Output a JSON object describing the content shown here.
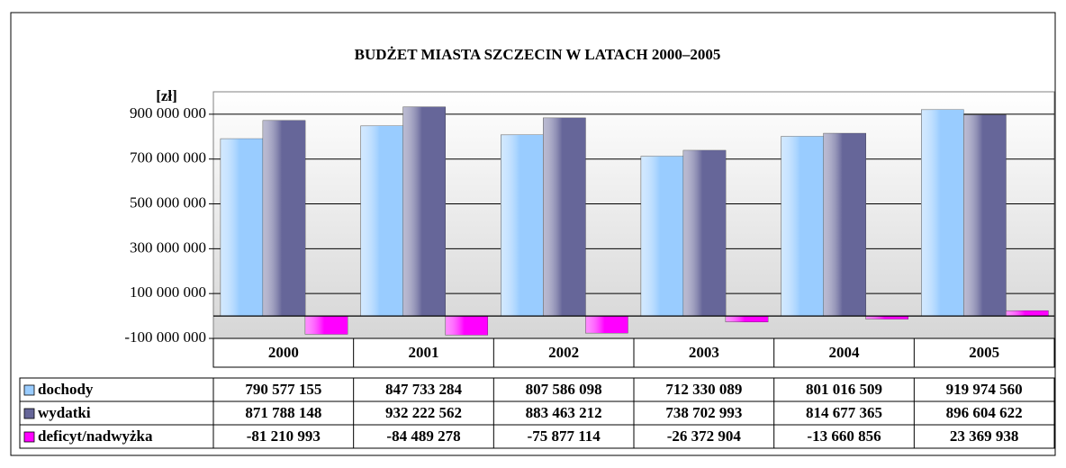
{
  "chart_data": {
    "type": "bar",
    "title": "BUDŻET MIASTA SZCZECIN W LATACH 2000–2005",
    "y_label": "[zł]",
    "categories": [
      "2000",
      "2001",
      "2002",
      "2003",
      "2004",
      "2005"
    ],
    "series": [
      {
        "name": "dochody",
        "color": "#99ccff",
        "values": [
          790577155,
          847733284,
          807586098,
          712330089,
          801016509,
          919974560
        ],
        "value_labels": [
          "790 577 155",
          "847 733 284",
          "807 586 098",
          "712 330 089",
          "801 016 509",
          "919 974 560"
        ]
      },
      {
        "name": "wydatki",
        "color": "#666699",
        "values": [
          871788148,
          932222562,
          883463212,
          738702993,
          814677365,
          896604622
        ],
        "value_labels": [
          "871 788 148",
          "932 222 562",
          "883 463 212",
          "738 702 993",
          "814 677 365",
          "896 604 622"
        ]
      },
      {
        "name": "deficyt/nadwyżka",
        "color": "#ff00ff",
        "values": [
          -81210993,
          -84489278,
          -75877114,
          -26372904,
          -13660856,
          23369938
        ],
        "value_labels": [
          "-81 210 993",
          "-84 489 278",
          "-75 877 114",
          "-26 372 904",
          "-13 660 856",
          "23 369 938"
        ]
      }
    ],
    "ylim": [
      -100000000,
      1000000000
    ],
    "yticks": [
      {
        "value": -100000000,
        "label": "-100 000 000"
      },
      {
        "value": 100000000,
        "label": "100 000 000"
      },
      {
        "value": 300000000,
        "label": "300 000 000"
      },
      {
        "value": 500000000,
        "label": "500 000 000"
      },
      {
        "value": 700000000,
        "label": "700 000 000"
      },
      {
        "value": 900000000,
        "label": "900 000 000"
      }
    ],
    "grid": true
  }
}
